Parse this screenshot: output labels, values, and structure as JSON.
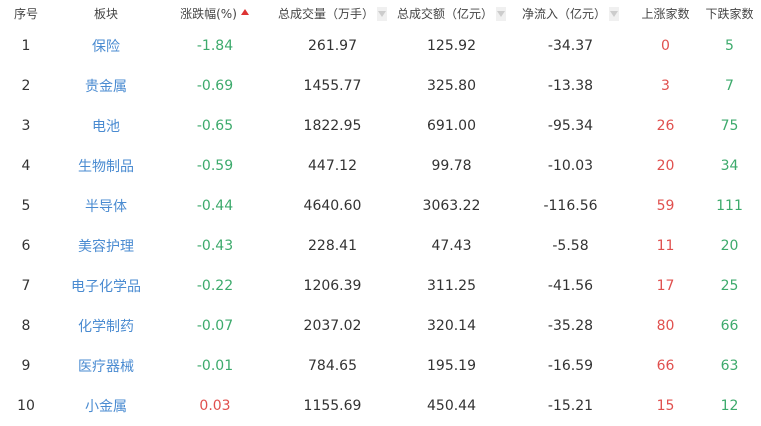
{
  "headers": [
    "序号",
    "板块",
    "涨跌幅(%)",
    "总成交量（万手）",
    "总成交额（亿元）",
    "净流入（亿元）",
    "上涨家数",
    "下跌家数"
  ],
  "sort": {
    "active_column": "涨跌幅(%)",
    "direction": "ascending"
  },
  "colors": {
    "up": "#e0504e",
    "down": "#3daa6c",
    "link": "#4a8bd1"
  },
  "rows": [
    {
      "rank": "1",
      "sector": "保险",
      "change": "-1.84",
      "volume": "261.97",
      "amount": "125.92",
      "net_inflow": "-34.37",
      "up": "0",
      "down": "5"
    },
    {
      "rank": "2",
      "sector": "贵金属",
      "change": "-0.69",
      "volume": "1455.77",
      "amount": "325.80",
      "net_inflow": "-13.38",
      "up": "3",
      "down": "7"
    },
    {
      "rank": "3",
      "sector": "电池",
      "change": "-0.65",
      "volume": "1822.95",
      "amount": "691.00",
      "net_inflow": "-95.34",
      "up": "26",
      "down": "75"
    },
    {
      "rank": "4",
      "sector": "生物制品",
      "change": "-0.59",
      "volume": "447.12",
      "amount": "99.78",
      "net_inflow": "-10.03",
      "up": "20",
      "down": "34"
    },
    {
      "rank": "5",
      "sector": "半导体",
      "change": "-0.44",
      "volume": "4640.60",
      "amount": "3063.22",
      "net_inflow": "-116.56",
      "up": "59",
      "down": "111"
    },
    {
      "rank": "6",
      "sector": "美容护理",
      "change": "-0.43",
      "volume": "228.41",
      "amount": "47.43",
      "net_inflow": "-5.58",
      "up": "11",
      "down": "20"
    },
    {
      "rank": "7",
      "sector": "电子化学品",
      "change": "-0.22",
      "volume": "1206.39",
      "amount": "311.25",
      "net_inflow": "-41.56",
      "up": "17",
      "down": "25"
    },
    {
      "rank": "8",
      "sector": "化学制药",
      "change": "-0.07",
      "volume": "2037.02",
      "amount": "320.14",
      "net_inflow": "-35.28",
      "up": "80",
      "down": "66"
    },
    {
      "rank": "9",
      "sector": "医疗器械",
      "change": "-0.01",
      "volume": "784.65",
      "amount": "195.19",
      "net_inflow": "-16.59",
      "up": "66",
      "down": "63"
    },
    {
      "rank": "10",
      "sector": "小金属",
      "change": "0.03",
      "volume": "1155.69",
      "amount": "450.44",
      "net_inflow": "-15.21",
      "up": "15",
      "down": "12"
    }
  ]
}
